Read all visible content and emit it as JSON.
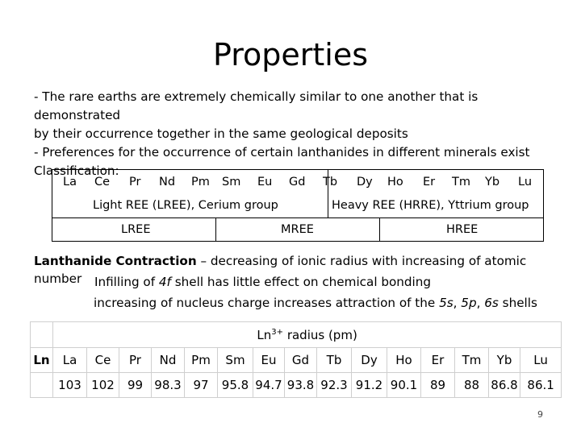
{
  "title": "Properties",
  "intro": {
    "line1": "- The rare earths are extremely chemically similar to one another that is demonstrated",
    "line2": "by their occurrence together in the same geological deposits",
    "line3": "- Preferences for the occurrence of certain lanthanides in different minerals exist",
    "line4": "Classification:"
  },
  "classification": {
    "elements": [
      "La",
      "Ce",
      "Pr",
      "Nd",
      "Pm",
      "Sm",
      "Eu",
      "Gd",
      "Tb",
      "Dy",
      "Ho",
      "Er",
      "Tm",
      "Yb",
      "Lu"
    ],
    "light_group": "Light REE (LREE), Cerium group",
    "heavy_group": "Heavy REE (HRRE), Yttrium group",
    "lree": "LREE",
    "mree": "MREE",
    "hree": "HREE"
  },
  "contraction": {
    "heading": "Lanthanide Contraction",
    "desc": " – decreasing of ionic radius with increasing of atomic number",
    "line2a": "Infilling of ",
    "line2_4f": "4f",
    "line2b": " shell has little effect on chemical bonding",
    "line3a": "increasing of nucleus charge  increases attraction of the ",
    "line3_5s": "5s",
    "line3_sep1": ", ",
    "line3_5p": "5p",
    "line3_sep2": ", ",
    "line3_6s": "6s",
    "line3b": " shells"
  },
  "radius_table": {
    "header_base": "Ln",
    "header_sup": "3+",
    "header_rest": " radius (pm)",
    "row_label": "Ln",
    "elements": [
      "La",
      "Ce",
      "Pr",
      "Nd",
      "Pm",
      "Sm",
      "Eu",
      "Gd",
      "Tb",
      "Dy",
      "Ho",
      "Er",
      "Tm",
      "Yb",
      "Lu"
    ],
    "values": [
      "103",
      "102",
      "99",
      "98.3",
      "97",
      "95.8",
      "94.7",
      "93.8",
      "92.3",
      "91.2",
      "90.1",
      "89",
      "88",
      "86.8",
      "86.1"
    ]
  },
  "colors": {
    "border": "#000000",
    "table_border": "#cfcfcf"
  },
  "page_number": "9"
}
